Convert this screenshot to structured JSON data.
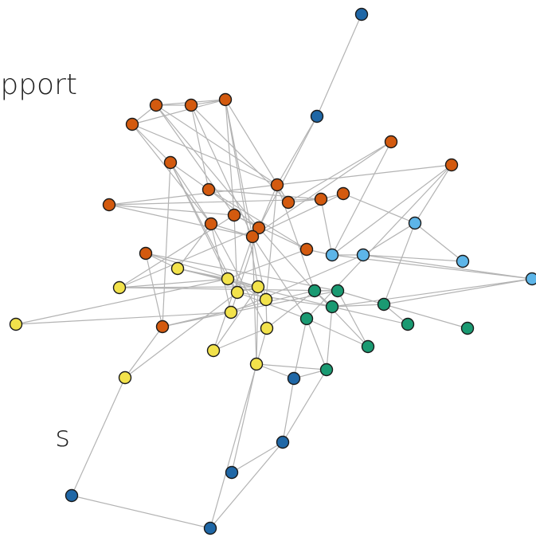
{
  "texts": [
    "pport",
    "s"
  ]
}
